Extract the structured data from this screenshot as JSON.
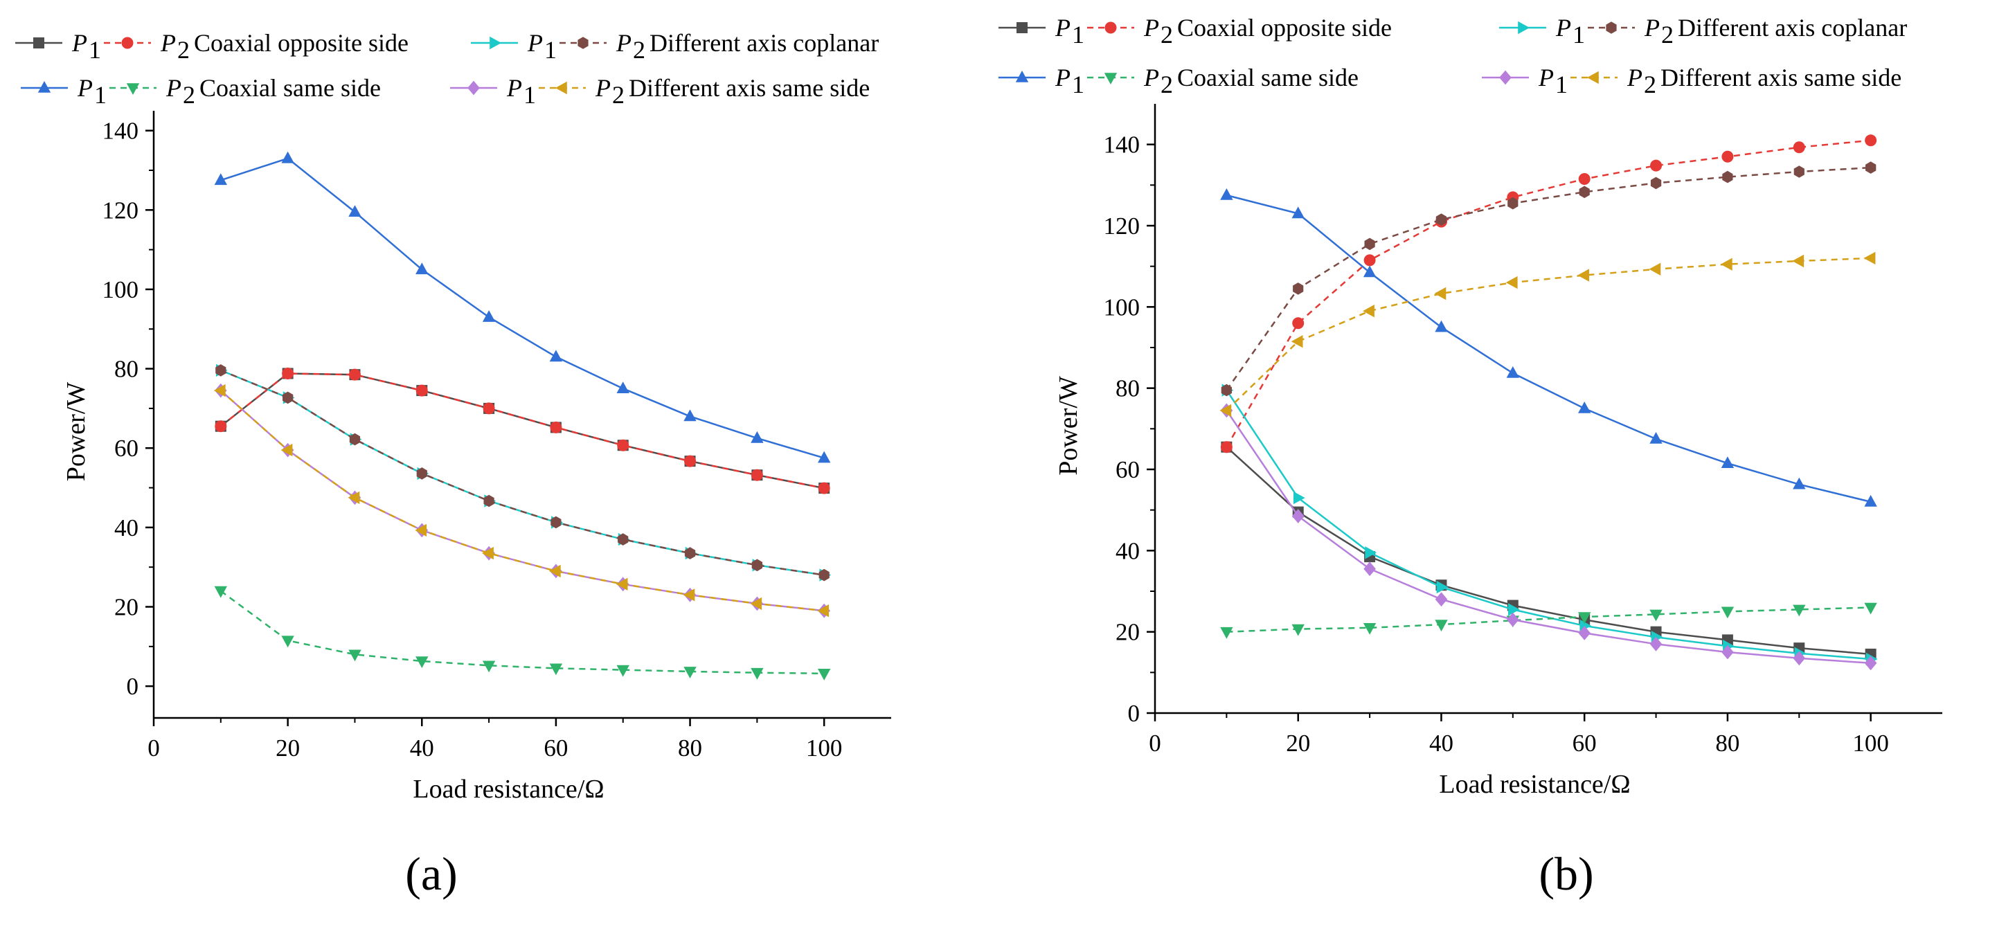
{
  "chart_data": [
    {
      "type": "line",
      "panel_label": "(a)",
      "xlabel": "Load resistance/Ω",
      "ylabel": "Power/W",
      "xlim": [
        0,
        110
      ],
      "ylim": [
        -8,
        145
      ],
      "xticks": [
        0,
        20,
        40,
        60,
        80,
        100
      ],
      "yticks": [
        0,
        20,
        40,
        60,
        80,
        100,
        120,
        140
      ],
      "x": [
        10,
        20,
        30,
        40,
        50,
        60,
        70,
        80,
        90,
        100
      ],
      "legend_groups": [
        {
          "p1": "P",
          "p1_sub": "1",
          "p2": "P",
          "p2_sub": "2",
          "label": "Coaxial opposite side"
        },
        {
          "p1": "P",
          "p1_sub": "1",
          "p2": "P",
          "p2_sub": "2",
          "label": "Different axis coplanar"
        },
        {
          "p1": "P",
          "p1_sub": "1",
          "p2": "P",
          "p2_sub": "2",
          "label": "Coaxial same side"
        },
        {
          "p1": "P",
          "p1_sub": "1",
          "p2": "P",
          "p2_sub": "2",
          "label": "Different axis same side"
        }
      ],
      "series": [
        {
          "name": "P1 Coaxial opposite side",
          "color": "#4d4d4d",
          "marker": "square",
          "dash": false,
          "values": [
            65.5,
            78.8,
            78.5,
            74.5,
            70.0,
            65.2,
            60.7,
            56.7,
            53.2,
            49.9
          ]
        },
        {
          "name": "P2 Coaxial opposite side",
          "color": "#e53935",
          "marker": "circle",
          "dash": true,
          "values": [
            65.5,
            78.8,
            78.5,
            74.5,
            70.0,
            65.2,
            60.7,
            56.7,
            53.2,
            49.9
          ]
        },
        {
          "name": "P1 Different axis coplanar",
          "color": "#1cc9c9",
          "marker": "triangle-right",
          "dash": false,
          "values": [
            79.6,
            72.7,
            62.2,
            53.6,
            46.7,
            41.3,
            37.0,
            33.5,
            30.5,
            28.0
          ]
        },
        {
          "name": "P2 Different axis coplanar",
          "color": "#7b4a44",
          "marker": "hexagon",
          "dash": true,
          "values": [
            79.6,
            72.7,
            62.2,
            53.6,
            46.7,
            41.3,
            37.0,
            33.5,
            30.5,
            28.0
          ]
        },
        {
          "name": "P1 Coaxial same side",
          "color": "#2f6fd6",
          "marker": "triangle-up",
          "dash": false,
          "values": [
            127.5,
            133.0,
            119.5,
            105.0,
            93.0,
            83.0,
            75.0,
            68.0,
            62.5,
            57.5
          ]
        },
        {
          "name": "P2 Coaxial same side",
          "color": "#2fb36a",
          "marker": "triangle-down",
          "dash": true,
          "values": [
            24.0,
            11.5,
            8.0,
            6.3,
            5.2,
            4.5,
            4.1,
            3.7,
            3.4,
            3.2
          ]
        },
        {
          "name": "P1 Different axis same side",
          "color": "#b77fdb",
          "marker": "diamond",
          "dash": false,
          "values": [
            74.5,
            59.5,
            47.5,
            39.3,
            33.5,
            29.0,
            25.7,
            23.0,
            20.8,
            19.0
          ]
        },
        {
          "name": "P2 Different axis same side",
          "color": "#d4a017",
          "marker": "triangle-left",
          "dash": true,
          "values": [
            74.5,
            59.5,
            47.5,
            39.3,
            33.5,
            29.0,
            25.7,
            23.0,
            20.8,
            19.0
          ]
        }
      ]
    },
    {
      "type": "line",
      "panel_label": "(b)",
      "xlabel": "Load resistance/Ω",
      "ylabel": "Power/W",
      "xlim": [
        0,
        110
      ],
      "ylim": [
        0,
        150
      ],
      "xticks": [
        0,
        20,
        40,
        60,
        80,
        100
      ],
      "yticks": [
        0,
        20,
        40,
        60,
        80,
        100,
        120,
        140
      ],
      "x": [
        10,
        20,
        30,
        40,
        50,
        60,
        70,
        80,
        90,
        100
      ],
      "legend_groups": [
        {
          "p1": "P",
          "p1_sub": "1",
          "p2": "P",
          "p2_sub": "2",
          "label": "Coaxial opposite side"
        },
        {
          "p1": "P",
          "p1_sub": "1",
          "p2": "P",
          "p2_sub": "2",
          "label": "Different axis coplanar"
        },
        {
          "p1": "P",
          "p1_sub": "1",
          "p2": "P",
          "p2_sub": "2",
          "label": "Coaxial same side"
        },
        {
          "p1": "P",
          "p1_sub": "1",
          "p2": "P",
          "p2_sub": "2",
          "label": "Different axis same side"
        }
      ],
      "series": [
        {
          "name": "P1 Coaxial opposite side",
          "color": "#4d4d4d",
          "marker": "square",
          "dash": false,
          "values": [
            65.5,
            49.5,
            38.5,
            31.5,
            26.5,
            23.0,
            20.0,
            18.0,
            16.0,
            14.5
          ]
        },
        {
          "name": "P2 Coaxial opposite side",
          "color": "#e53935",
          "marker": "circle",
          "dash": true,
          "values": [
            65.5,
            96.0,
            111.5,
            121.0,
            127.0,
            131.5,
            134.8,
            137.0,
            139.3,
            141.0
          ]
        },
        {
          "name": "P1 Different axis coplanar",
          "color": "#1cc9c9",
          "marker": "triangle-right",
          "dash": false,
          "values": [
            79.5,
            53.0,
            39.5,
            31.0,
            25.5,
            21.5,
            18.7,
            16.5,
            14.7,
            13.3
          ]
        },
        {
          "name": "P2 Different axis coplanar",
          "color": "#7b4a44",
          "marker": "hexagon",
          "dash": true,
          "values": [
            79.5,
            104.5,
            115.5,
            121.5,
            125.5,
            128.3,
            130.5,
            132.0,
            133.3,
            134.3
          ]
        },
        {
          "name": "P1 Coaxial same side",
          "color": "#2f6fd6",
          "marker": "triangle-up",
          "dash": false,
          "values": [
            127.5,
            123.0,
            108.5,
            95.0,
            83.7,
            75.0,
            67.5,
            61.5,
            56.3,
            52.0
          ]
        },
        {
          "name": "P2 Coaxial same side",
          "color": "#2fb36a",
          "marker": "triangle-down",
          "dash": true,
          "values": [
            20.0,
            20.7,
            21.0,
            21.8,
            22.8,
            23.7,
            24.3,
            25.0,
            25.5,
            26.0
          ]
        },
        {
          "name": "P1 Different axis same side",
          "color": "#b77fdb",
          "marker": "diamond",
          "dash": false,
          "values": [
            74.5,
            48.5,
            35.5,
            28.0,
            23.0,
            19.7,
            17.0,
            15.0,
            13.5,
            12.3
          ]
        },
        {
          "name": "P2 Different axis same side",
          "color": "#d4a017",
          "marker": "triangle-left",
          "dash": true,
          "values": [
            74.5,
            91.5,
            99.0,
            103.3,
            106.0,
            107.8,
            109.3,
            110.5,
            111.3,
            112.0
          ]
        }
      ]
    }
  ]
}
